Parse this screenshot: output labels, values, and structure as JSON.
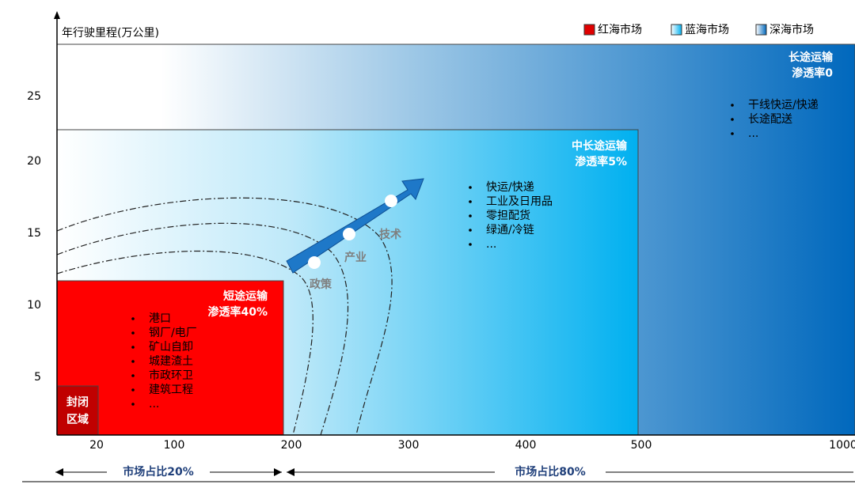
{
  "y_axis": {
    "label": "年行驶里程(万公里)",
    "ticks": [
      "25",
      "20",
      "15",
      "10",
      "5"
    ]
  },
  "x_axis": {
    "ticks": [
      "20",
      "100",
      "200",
      "300",
      "400",
      "500",
      "1000"
    ]
  },
  "legend": [
    "红海市场",
    "蓝海市场",
    "深海市场"
  ],
  "regions": [
    {
      "title": "短途运输",
      "penetration": "渗透率40%",
      "items": [
        "港口",
        "钢厂/电厂",
        "矿山自卸",
        "城建渣土",
        "市政环卫",
        "建筑工程",
        "..."
      ]
    },
    {
      "title": "中长途运输",
      "penetration": "渗透率5%",
      "items": [
        "快运/快递",
        "工业及日用品",
        "零担配货",
        "绿通/冷链",
        "..."
      ]
    },
    {
      "title": "长途运输",
      "penetration": "渗透率0",
      "items": [
        "干线快运/快递",
        "长途配送",
        "..."
      ]
    }
  ],
  "closed_area": [
    "封闭",
    "区域"
  ],
  "drivers": [
    "政策",
    "产业",
    "技术"
  ],
  "market_share": [
    "市场占比20%",
    "市场占比80%"
  ]
}
